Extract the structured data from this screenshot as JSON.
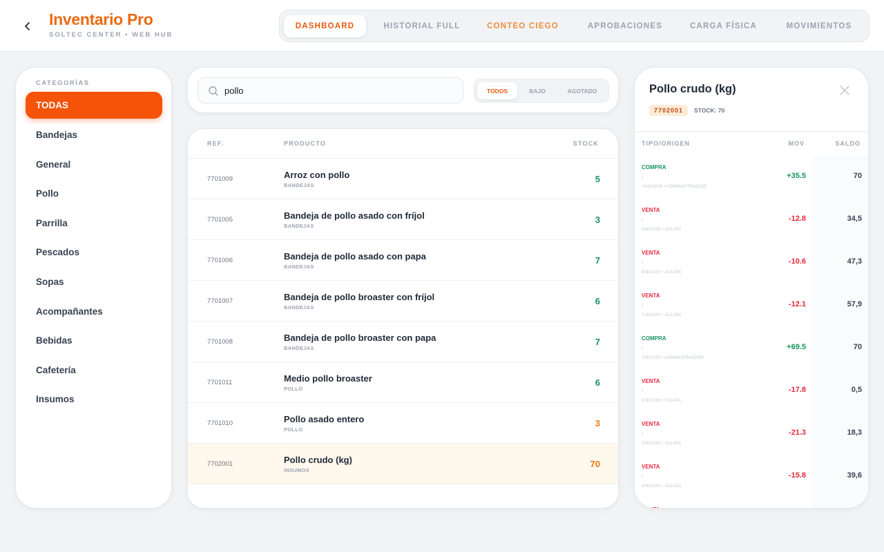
{
  "header": {
    "title": "Inventario Pro",
    "subtitle": "SOLTEC CENTER • WEB HUB",
    "tabs": [
      {
        "label": "DASHBOARD"
      },
      {
        "label": "HISTORIAL FULL"
      },
      {
        "label": "CONTEO CIEGO"
      },
      {
        "label": "APROBACIONES"
      },
      {
        "label": "CARGA FÍSICA"
      },
      {
        "label": "MOVIMIENTOS"
      }
    ],
    "active_tab": "DASHBOARD"
  },
  "sidebar": {
    "heading": "CATEGORÍAS",
    "items": [
      {
        "label": "TODAS"
      },
      {
        "label": "Bandejas"
      },
      {
        "label": "General"
      },
      {
        "label": "Pollo"
      },
      {
        "label": "Parrilla"
      },
      {
        "label": "Pescados"
      },
      {
        "label": "Sopas"
      },
      {
        "label": "Acompañantes"
      },
      {
        "label": "Bebidas"
      },
      {
        "label": "Cafetería"
      },
      {
        "label": "Insumos"
      }
    ],
    "active": "TODAS"
  },
  "search": {
    "value": "pollo",
    "filters": [
      {
        "label": "TODOS"
      },
      {
        "label": "BAJO"
      },
      {
        "label": "AGOTADO"
      }
    ],
    "active_filter": "TODOS"
  },
  "table": {
    "columns": {
      "ref": "REF.",
      "product": "PRODUCTO",
      "stock": "STOCK"
    },
    "rows": [
      {
        "ref": "7701009",
        "name": "Arroz con pollo",
        "category": "BANDEJAS",
        "stock": "5",
        "level": "ok"
      },
      {
        "ref": "7701005",
        "name": "Bandeja de pollo asado con fríjol",
        "category": "BANDEJAS",
        "stock": "3",
        "level": "ok"
      },
      {
        "ref": "7701006",
        "name": "Bandeja de pollo asado con papa",
        "category": "BANDEJAS",
        "stock": "7",
        "level": "ok"
      },
      {
        "ref": "7701007",
        "name": "Bandeja de pollo broaster con fríjol",
        "category": "BANDEJAS",
        "stock": "6",
        "level": "ok"
      },
      {
        "ref": "7701008",
        "name": "Bandeja de pollo broaster con papa",
        "category": "BANDEJAS",
        "stock": "7",
        "level": "ok"
      },
      {
        "ref": "7701011",
        "name": "Medio pollo broaster",
        "category": "POLLO",
        "stock": "6",
        "level": "ok"
      },
      {
        "ref": "7701010",
        "name": "Pollo asado entero",
        "category": "POLLO",
        "stock": "3",
        "level": "low"
      },
      {
        "ref": "7702001",
        "name": "Pollo crudo (kg)",
        "category": "INSUMOS",
        "stock": "70",
        "level": "selected"
      }
    ]
  },
  "detail": {
    "title": "Pollo crudo (kg)",
    "ref": "7702001",
    "stock": "STOCK: 70",
    "columns": {
      "type": "TIPO/ORIGEN",
      "mov": "MOV",
      "saldo": "SALDO"
    },
    "movements": [
      {
        "type": "COMPRA",
        "dash": "-",
        "meta": "10/8/2026 • ADMINISTRADOR",
        "mov": "+35.5",
        "saldo": "70",
        "sign": "pos"
      },
      {
        "type": "VENTA",
        "dash": "-",
        "meta": "9/9/2026 • JULIÁN",
        "mov": "-12.8",
        "saldo": "34,5",
        "sign": "neg"
      },
      {
        "type": "VENTA",
        "dash": "-",
        "meta": "8/9/2026 • JULIÁN",
        "mov": "-10.6",
        "saldo": "47,3",
        "sign": "neg"
      },
      {
        "type": "VENTA",
        "dash": "-",
        "meta": "7/9/2026 • JULIÁN",
        "mov": "-12.1",
        "saldo": "57,9",
        "sign": "neg"
      },
      {
        "type": "COMPRA",
        "dash": "-",
        "meta": "7/9/2026 • ADMINISTRADOR",
        "mov": "+69.5",
        "saldo": "70",
        "sign": "pos"
      },
      {
        "type": "VENTA",
        "dash": "-",
        "meta": "6/9/2026 • JULIÁN",
        "mov": "-17.8",
        "saldo": "0,5",
        "sign": "neg"
      },
      {
        "type": "VENTA",
        "dash": "-",
        "meta": "5/9/2026 • JULIÁN",
        "mov": "-21.3",
        "saldo": "18,3",
        "sign": "neg"
      },
      {
        "type": "VENTA",
        "dash": "-",
        "meta": "4/9/2026 • JULIÁN",
        "mov": "-15.8",
        "saldo": "39,6",
        "sign": "neg"
      },
      {
        "type": "VENTA",
        "dash": "",
        "meta": "",
        "mov": "",
        "saldo": "",
        "sign": "neg"
      }
    ]
  },
  "colors": {
    "brand": "#ea6a12",
    "accent": "#f45309",
    "positive": "#16935c",
    "negative": "#e5283c",
    "low": "#ea7a12",
    "selected_row": "#fff8ec"
  },
  "icons": {
    "back": "chevron-left-icon",
    "search": "search-icon",
    "close": "close-icon"
  }
}
